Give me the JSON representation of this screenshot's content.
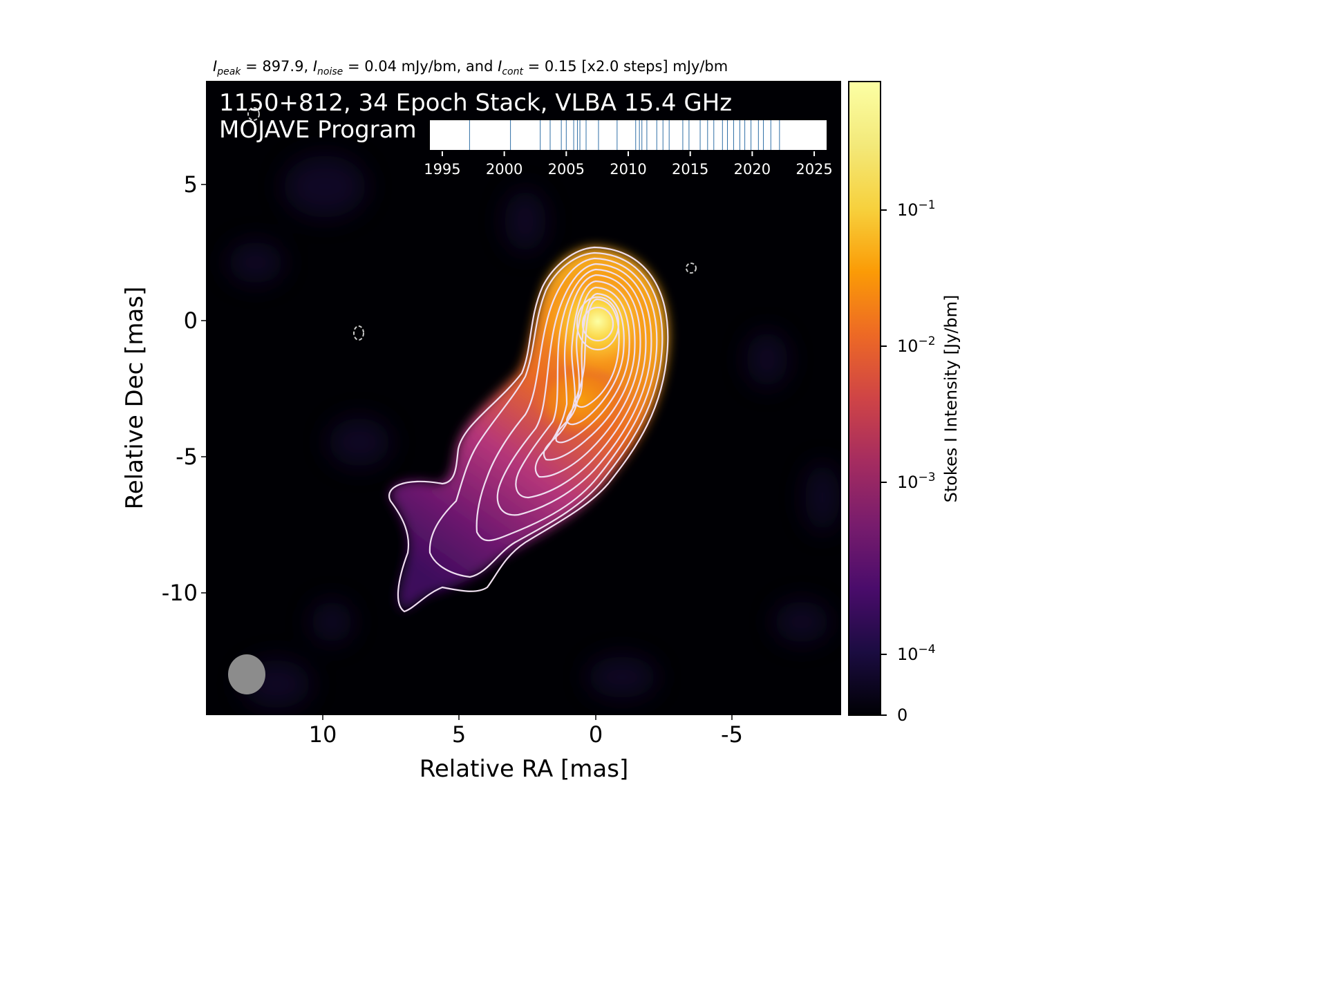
{
  "chart_data": {
    "type": "heatmap",
    "header": {
      "peak_sym": "I",
      "peak_sub": "peak",
      "peak_val": " = 897.9, ",
      "noise_sym": "I",
      "noise_sub": "noise",
      "noise_val": " = 0.04 mJy/bm, and ",
      "cont_sym": "I",
      "cont_sub": "cont",
      "cont_val": " = 0.15 [x2.0 steps] mJy/bm"
    },
    "title_line1": "1150+812, 34 Epoch Stack, VLBA 15.4 GHz",
    "title_line2": "MOJAVE Program",
    "xlabel": "Relative RA [mas]",
    "ylabel": "Relative Dec [mas]",
    "xlim": [
      14.1,
      -9.0
    ],
    "ylim": [
      -14.3,
      8.7
    ],
    "xticks": [
      10,
      5,
      0,
      -5
    ],
    "xtick_labels": [
      "10",
      "5",
      "0",
      "-5"
    ],
    "yticks": [
      5,
      0,
      -5,
      -10
    ],
    "ytick_labels": [
      "5",
      "0",
      "-5",
      "-10"
    ],
    "peak_position": [
      0.0,
      -0.2
    ],
    "negative_contours": [
      [
        8.7,
        -0.5
      ],
      [
        -3.5,
        1.9
      ]
    ],
    "beam": {
      "center": [
        12.7,
        -12.9
      ],
      "major_mas": 1.4,
      "minor_mas": 1.4
    },
    "colorbar": {
      "label": "Stokes I Intensity [Jy/bm]",
      "scale": "log",
      "colormap": "inferno",
      "ticks": [
        {
          "value": 0.1,
          "base": "10",
          "exp": "−1"
        },
        {
          "value": 0.01,
          "base": "10",
          "exp": "−2"
        },
        {
          "value": 0.001,
          "base": "10",
          "exp": "−3"
        },
        {
          "value": 0.0001,
          "base": "10",
          "exp": "−4"
        },
        {
          "value": 0,
          "label": "0"
        }
      ]
    },
    "timeline": {
      "xlim": [
        1994,
        2026
      ],
      "ticks": [
        1995,
        2000,
        2005,
        2010,
        2015,
        2020,
        2025
      ],
      "tick_labels": [
        "1995",
        "2000",
        "2005",
        "2010",
        "2015",
        "2020",
        "2025"
      ],
      "epochs": [
        1997.2,
        2000.5,
        2002.9,
        2003.7,
        2004.6,
        2005.0,
        2005.6,
        2005.9,
        2006.1,
        2006.6,
        2007.6,
        2009.1,
        2010.6,
        2010.9,
        2011.1,
        2011.5,
        2012.3,
        2012.8,
        2013.3,
        2014.4,
        2014.9,
        2015.8,
        2016.4,
        2016.9,
        2017.6,
        2018.0,
        2018.5,
        2019.0,
        2019.4,
        2019.9,
        2020.5,
        2020.9,
        2021.5,
        2022.2
      ]
    }
  }
}
